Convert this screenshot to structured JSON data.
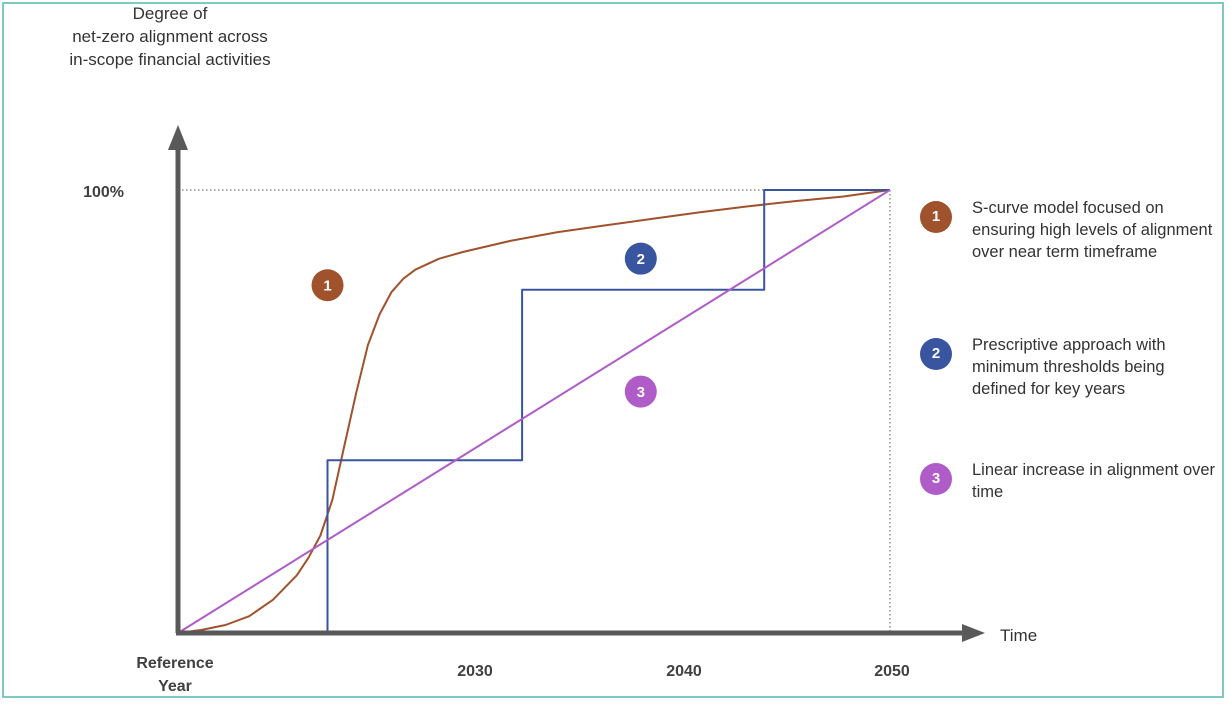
{
  "chart_data": {
    "type": "line",
    "ylabel": [
      "Degree of",
      "net-zero alignment across",
      "in-scope financial activities"
    ],
    "xlabel": "Time",
    "y_tick": "100%",
    "x_ticks": [
      {
        "x": 2020,
        "label": "Reference Year"
      },
      {
        "x": 2030,
        "label": "2030"
      },
      {
        "x": 2040,
        "label": "2040"
      },
      {
        "x": 2050,
        "label": "2050"
      }
    ],
    "xlim": [
      2020,
      2050
    ],
    "ylim": [
      0,
      100
    ],
    "series": [
      {
        "id": "1",
        "color": "#a0522d",
        "shape": "s-curve",
        "points": [
          [
            2020,
            0
          ],
          [
            2021,
            0.7
          ],
          [
            2022,
            1.8
          ],
          [
            2023,
            3.8
          ],
          [
            2024,
            7.5
          ],
          [
            2025,
            13
          ],
          [
            2025.5,
            17
          ],
          [
            2026,
            22
          ],
          [
            2026.5,
            30
          ],
          [
            2027,
            42
          ],
          [
            2027.5,
            54
          ],
          [
            2028,
            65
          ],
          [
            2028.5,
            72
          ],
          [
            2029,
            77
          ],
          [
            2029.5,
            80
          ],
          [
            2030,
            82
          ],
          [
            2031,
            84.5
          ],
          [
            2032,
            86
          ],
          [
            2034,
            88.5
          ],
          [
            2036,
            90.5
          ],
          [
            2038,
            92
          ],
          [
            2040,
            93.5
          ],
          [
            2042,
            95
          ],
          [
            2044,
            96.3
          ],
          [
            2046,
            97.5
          ],
          [
            2048,
            98.5
          ],
          [
            2050,
            100
          ]
        ],
        "badge_at": [
          2026.3,
          78.5
        ]
      },
      {
        "id": "2",
        "color": "#3a55a0",
        "shape": "step",
        "points": [
          [
            2020,
            0
          ],
          [
            2026.3,
            0
          ],
          [
            2026.3,
            39
          ],
          [
            2034.5,
            39
          ],
          [
            2034.5,
            77.5
          ],
          [
            2044.7,
            77.5
          ],
          [
            2044.7,
            100
          ],
          [
            2050,
            100
          ]
        ],
        "badge_at": [
          2039.5,
          84.5
        ]
      },
      {
        "id": "3",
        "color": "#b05cc8",
        "shape": "linear",
        "points": [
          [
            2020,
            0
          ],
          [
            2050,
            100
          ]
        ],
        "badge_at": [
          2039.5,
          54.5
        ]
      }
    ],
    "legend": [
      {
        "id": "1",
        "label": "1",
        "color": "#a0522d",
        "text": "S-curve model focused on ensuring high levels of alignment over near term timeframe"
      },
      {
        "id": "2",
        "label": "2",
        "color": "#3a55a0",
        "text": "Prescriptive approach with minimum thresholds being defined for key years"
      },
      {
        "id": "3",
        "label": "3",
        "color": "#b05cc8",
        "text": "Linear increase in alignment over time"
      }
    ],
    "legend_position": "right",
    "grid": false
  }
}
